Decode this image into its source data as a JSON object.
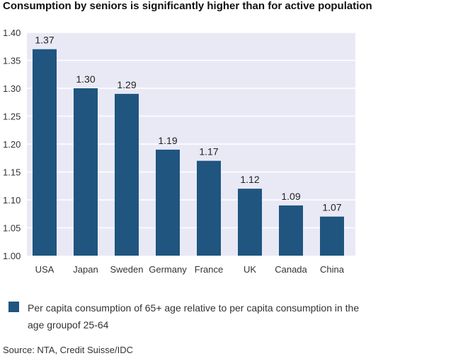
{
  "title": "Consumption by seniors is significantly higher than for active population",
  "legend_label": "Per capita consumption of 65+ age relative to per capita consumption in the age groupof 25-64",
  "source": "Source: NTA, Credit Suisse/IDC",
  "colors": {
    "bar": "#1f557f",
    "plot_bg": "#e9e9f6",
    "grid": "#ffffff"
  },
  "chart_data": {
    "type": "bar",
    "title": "Consumption by seniors is significantly higher than for active population",
    "xlabel": "",
    "ylabel": "",
    "categories": [
      "USA",
      "Japan",
      "Sweden",
      "Germany",
      "France",
      "UK",
      "Canada",
      "China"
    ],
    "values": [
      1.37,
      1.3,
      1.29,
      1.19,
      1.17,
      1.12,
      1.09,
      1.07
    ],
    "value_labels": [
      "1.37",
      "1.30",
      "1.29",
      "1.19",
      "1.17",
      "1.12",
      "1.09",
      "1.07"
    ],
    "ylim": [
      1.0,
      1.4
    ],
    "yticks": [
      "1.00",
      "1.05",
      "1.10",
      "1.15",
      "1.20",
      "1.25",
      "1.30",
      "1.35",
      "1.40"
    ],
    "grid": true,
    "legend": "bottom",
    "series": [
      {
        "name": "Per capita consumption of 65+ age relative to per capita consumption in the age groupof 25-64",
        "values": [
          1.37,
          1.3,
          1.29,
          1.19,
          1.17,
          1.12,
          1.09,
          1.07
        ]
      }
    ]
  }
}
